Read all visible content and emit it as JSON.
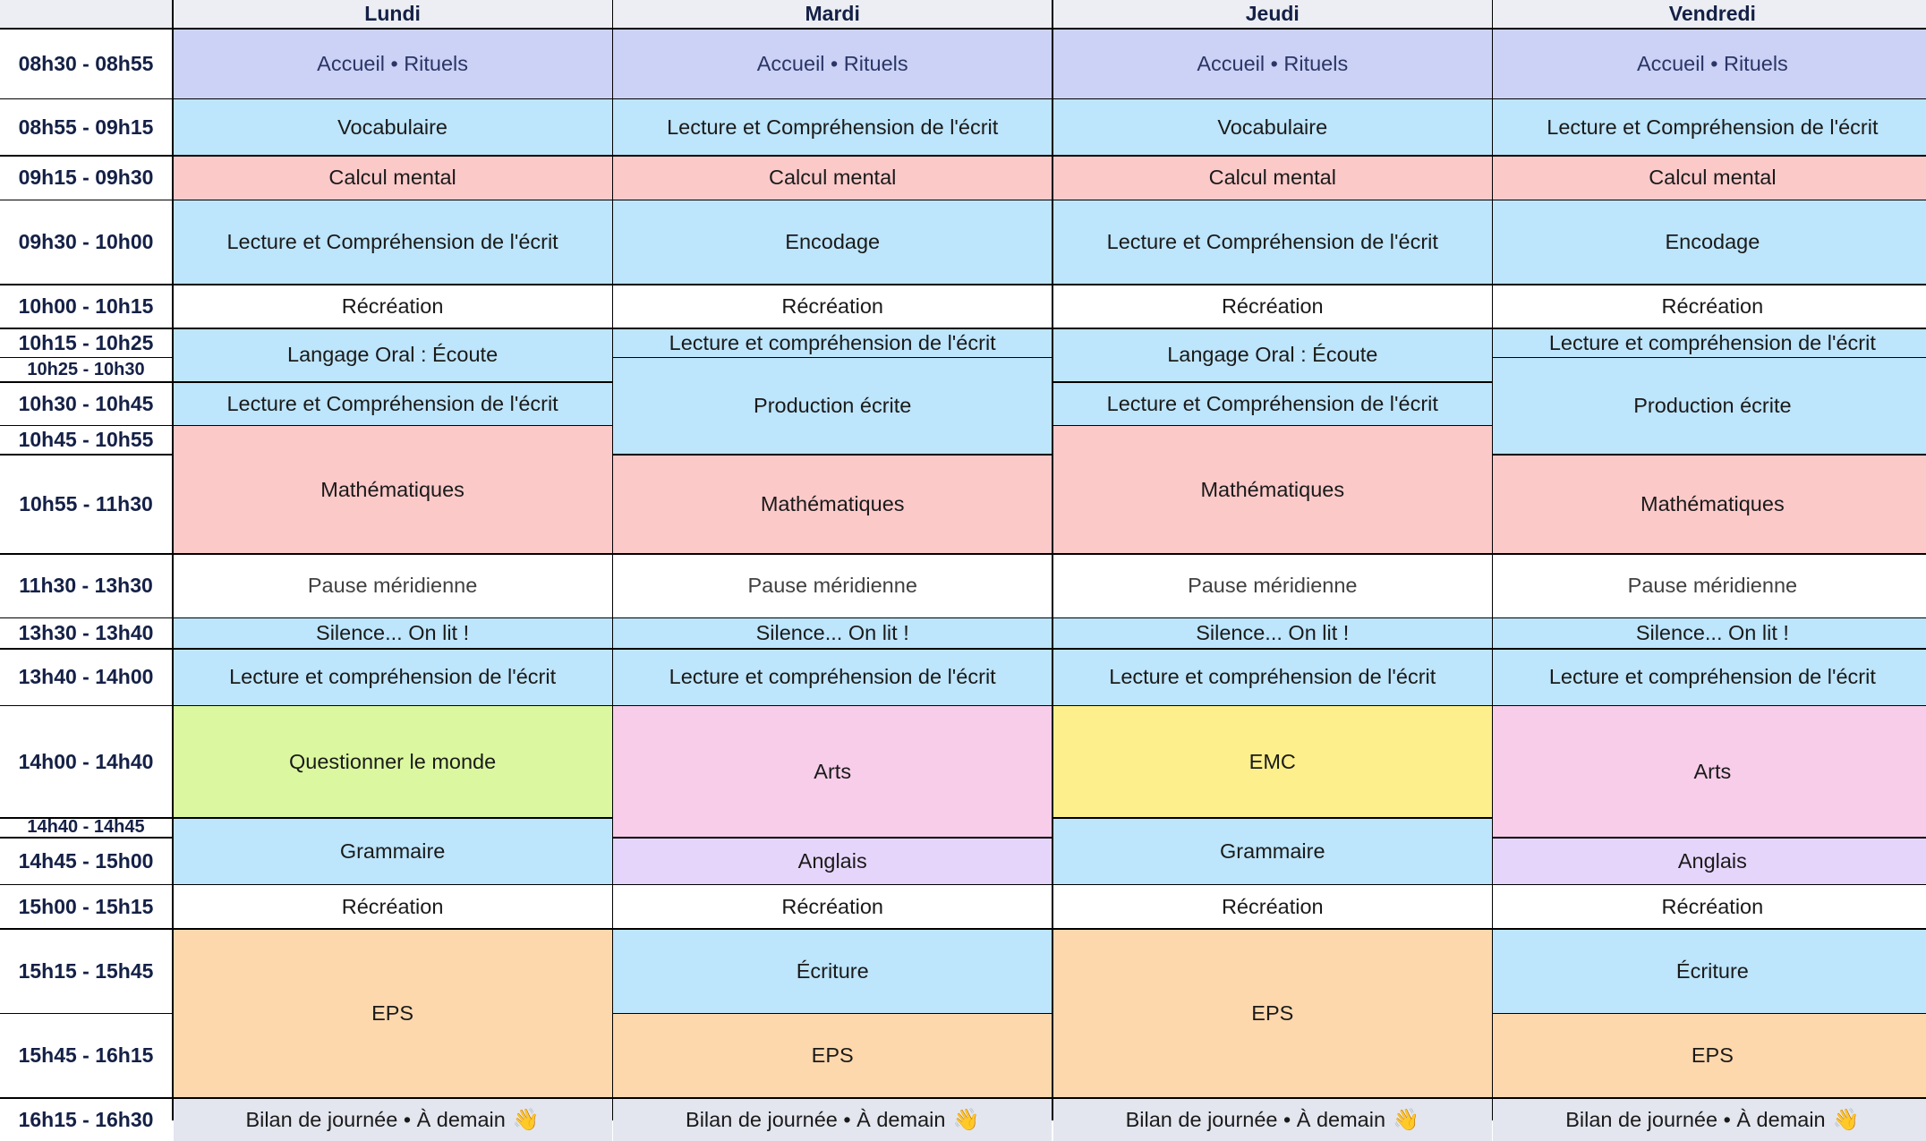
{
  "days": [
    "Lundi",
    "Mardi",
    "Jeudi",
    "Vendredi"
  ],
  "times": [
    "08h30 - 08h55",
    "08h55 - 09h15",
    "09h15 - 09h30",
    "09h30 - 10h00",
    "10h00 - 10h15",
    "10h15 - 10h25",
    "10h25 - 10h30",
    "10h30 - 10h45",
    "10h45 - 10h55",
    "10h55 - 11h30",
    "11h30 - 13h30",
    "13h30 - 13h40",
    "13h40 - 14h00",
    "14h00 - 14h40",
    "14h40 - 14h45",
    "14h45 - 15h00",
    "15h00 - 15h15",
    "15h15 - 15h45",
    "15h45 - 16h15",
    "16h15 - 16h30"
  ],
  "activities": {
    "accueil": "Accueil • Rituels",
    "vocabulaire": "Vocabulaire",
    "lecture_maj": "Lecture et Compréhension de l'écrit",
    "lecture_min": "Lecture et compréhension de l'écrit",
    "calcul": "Calcul mental",
    "encodage": "Encodage",
    "recreation": "Récréation",
    "langage": "Langage Oral : Écoute",
    "production": "Production écrite",
    "maths": "Mathématiques",
    "pause": "Pause méridienne",
    "silence": "Silence... On lit !",
    "questionner": "Questionner le monde",
    "arts": "Arts",
    "emc": "EMC",
    "grammaire": "Grammaire",
    "anglais": "Anglais",
    "eps": "EPS",
    "ecriture": "Écriture",
    "bilan": "Bilan de journée • À demain",
    "bilan_emoji": "👋"
  },
  "colors": {
    "accueil": "#cbd2f5",
    "blue": "#bde5fb",
    "red": "#fcc9c9",
    "orange": "#fdd8ad",
    "pink": "#f8cde9",
    "lilac": "#e6d5fb",
    "green": "#dbf8a0",
    "yellow": "#fdf08c",
    "grey": "#e3e6ef",
    "header_text": "#142046"
  }
}
